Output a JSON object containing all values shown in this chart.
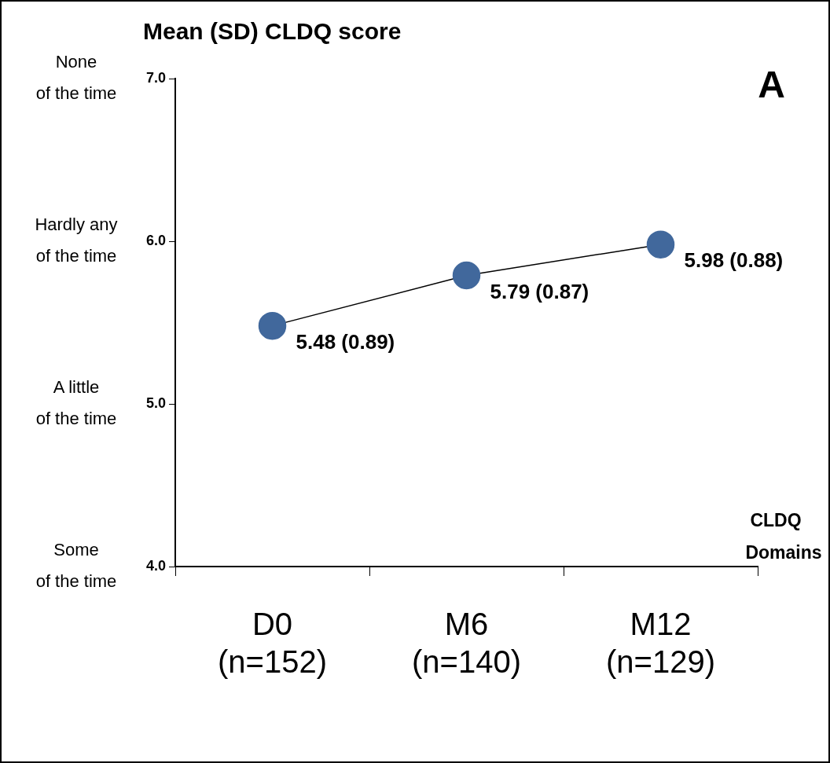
{
  "chart_data": {
    "type": "line",
    "title": "Mean (SD) CLDQ score",
    "xlabel": "CLDQ Domains",
    "categories": [
      "D0 (n=152)",
      "M6 (n=140)",
      "M12 (n=129)"
    ],
    "series": [
      {
        "color": "#41689c",
        "values": [
          5.48,
          5.79,
          5.98
        ],
        "value_labels": [
          "5.48 (0.89)",
          "5.79 (0.87)",
          "5.98 (0.88)"
        ]
      }
    ],
    "ylim": [
      4,
      7
    ],
    "yticks": [
      {
        "value": 4,
        "label": "4.0"
      },
      {
        "value": 5,
        "label": "5.0"
      },
      {
        "value": 6,
        "label": "6.0"
      },
      {
        "value": 7,
        "label": "7.0"
      }
    ],
    "annotations": [
      "None of the time",
      "Hardly any of the time",
      "A little of the time",
      "Some of the time",
      "A"
    ],
    "grid": false,
    "legend": false,
    "marker": "circle",
    "line_style": "solid"
  }
}
